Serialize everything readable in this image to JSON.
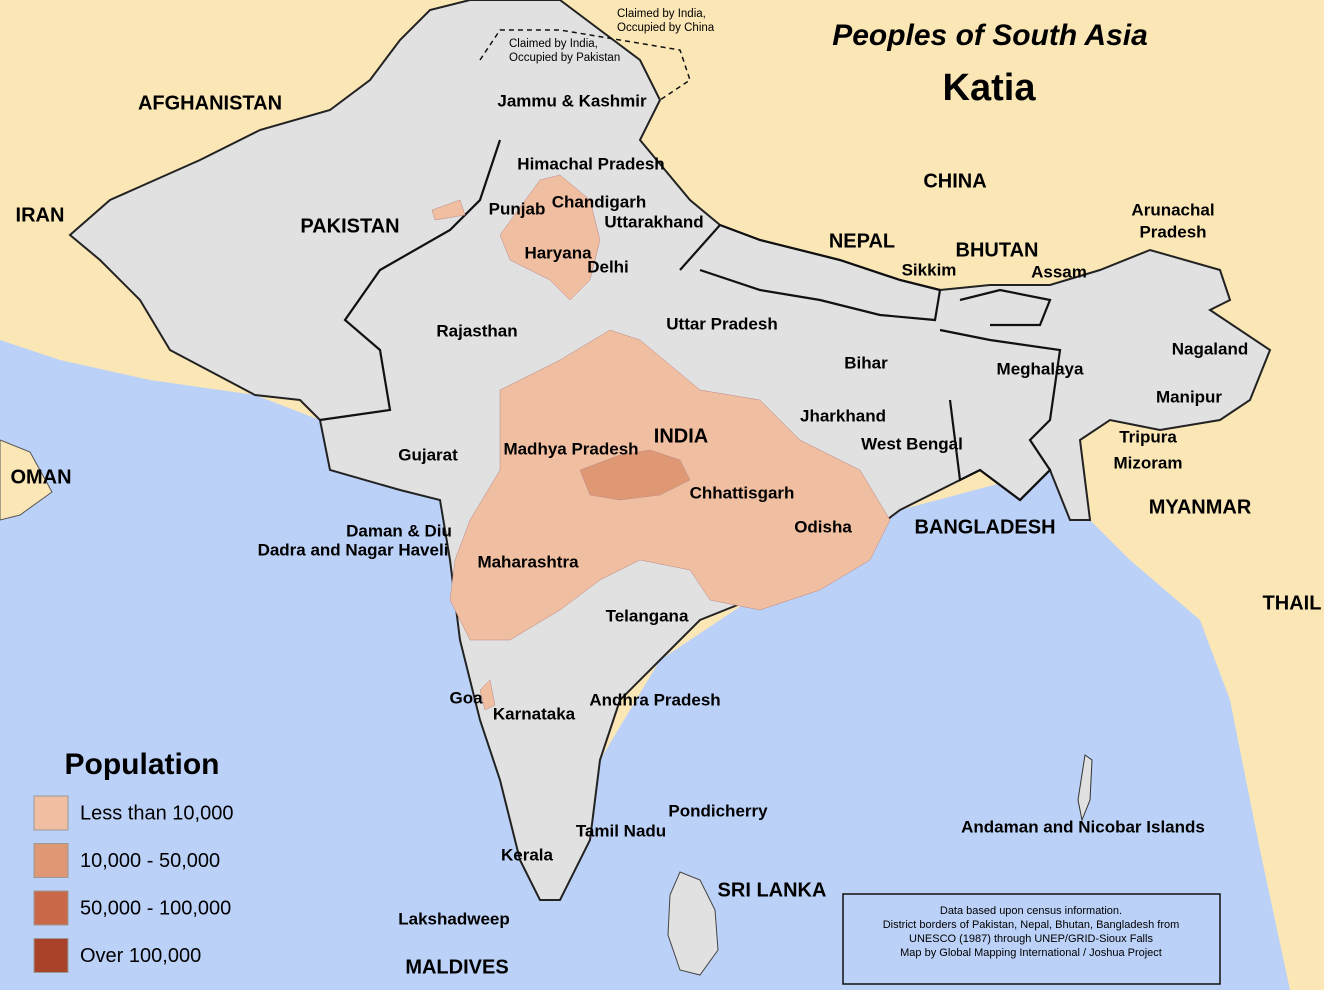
{
  "header": {
    "title": "Peoples of South Asia",
    "subtitle": "Katia"
  },
  "claims": [
    [
      "Claimed by India,",
      "Occupied by China"
    ],
    [
      "Claimed by India,",
      "Occupied by Pakistan"
    ]
  ],
  "countries": [
    "AFGHANISTAN",
    "IRAN",
    "PAKISTAN",
    "CHINA",
    "NEPAL",
    "BHUTAN",
    "INDIA",
    "BANGLADESH",
    "MYANMAR",
    "OMAN",
    "THAIL",
    "SRI LANKA",
    "MALDIVES"
  ],
  "regions": [
    "Jammu & Kashmir",
    "Himachal Pradesh",
    "Punjab",
    "Chandigarh",
    "Uttarakhand",
    "Haryana",
    "Delhi",
    "Rajasthan",
    "Uttar Pradesh",
    "Bihar",
    "Sikkim",
    "Assam",
    [
      "Arunachal",
      "Pradesh"
    ],
    "Nagaland",
    "Meghalaya",
    "Manipur",
    "Tripura",
    "Mizoram",
    "Jharkhand",
    "West Bengal",
    "Gujarat",
    "Madhya Pradesh",
    "Chhattisgarh",
    "Odisha",
    "Daman & Diu",
    "Dadra and Nagar Haveli",
    "Maharashtra",
    "Telangana",
    "Goa",
    "Karnataka",
    "Andhra Pradesh",
    "Pondicherry",
    "Tamil Nadu",
    "Kerala",
    "Lakshadweep",
    "Andaman and Nicobar Islands"
  ],
  "legend": {
    "title": "Population",
    "items": [
      {
        "label": "Less than 10,000",
        "color": "#f0bea0"
      },
      {
        "label": "10,000 - 50,000",
        "color": "#df9874"
      },
      {
        "label": "50,000 - 100,000",
        "color": "#c9694a"
      },
      {
        "label": "Over 100,000",
        "color": "#a8432a"
      }
    ]
  },
  "note": [
    "Data based upon census information.",
    "District borders of Pakistan, Nepal, Bhutan, Bangladesh from",
    "UNESCO (1987) through UNEP/GRID-Sioux Falls",
    "Map by Global Mapping International / Joshua Project"
  ]
}
